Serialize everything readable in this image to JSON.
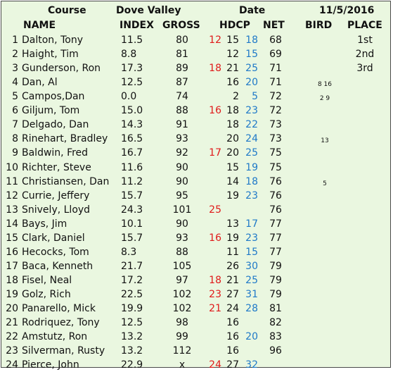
{
  "header": {
    "course_label": "Course",
    "course_value": "Dove Valley",
    "date_label": "Date",
    "date_value": "11/5/2016"
  },
  "columns": {
    "name": "NAME",
    "index": "INDEX",
    "gross": "GROSS",
    "hdcp": "HDCP",
    "net": "NET",
    "bird": "BIRD",
    "place": "PLACE"
  },
  "rows": [
    {
      "num": "1",
      "name": "Dalton, Tony",
      "index": "11.5",
      "gross": "80",
      "red": "12",
      "hdcp": "15",
      "blue": "18",
      "net": "68",
      "bird": "",
      "place": "1st"
    },
    {
      "num": "2",
      "name": "Haight, Tim",
      "index": "8.8",
      "gross": "81",
      "red": "",
      "hdcp": "12",
      "blue": "15",
      "net": "69",
      "bird": "",
      "place": "2nd"
    },
    {
      "num": "3",
      "name": "Gunderson, Ron",
      "index": "17.3",
      "gross": "89",
      "red": "18",
      "hdcp": "21",
      "blue": "25",
      "net": "71",
      "bird": "",
      "place": "3rd"
    },
    {
      "num": "4",
      "name": "Dan, Al",
      "index": "12.5",
      "gross": "87",
      "red": "",
      "hdcp": "16",
      "blue": "20",
      "net": "71",
      "bird": "8 16",
      "place": ""
    },
    {
      "num": "5",
      "name": "Campos,Dan",
      "index": "0.0",
      "gross": "74",
      "red": "",
      "hdcp": "2",
      "blue": "5",
      "net": "72",
      "bird": "2 9",
      "place": ""
    },
    {
      "num": "6",
      "name": "Giljum, Tom",
      "index": "15.0",
      "gross": "88",
      "red": "16",
      "hdcp": "18",
      "blue": "23",
      "net": "72",
      "bird": "",
      "place": ""
    },
    {
      "num": "7",
      "name": "Delgado, Dan",
      "index": "14.3",
      "gross": "91",
      "red": "",
      "hdcp": "18",
      "blue": "22",
      "net": "73",
      "bird": "",
      "place": ""
    },
    {
      "num": "8",
      "name": "Rinehart, Bradley",
      "index": "16.5",
      "gross": "93",
      "red": "",
      "hdcp": "20",
      "blue": "24",
      "net": "73",
      "bird": "13",
      "place": ""
    },
    {
      "num": "9",
      "name": "Baldwin, Fred",
      "index": "16.7",
      "gross": "92",
      "red": "17",
      "hdcp": "20",
      "blue": "25",
      "net": "75",
      "bird": "",
      "place": ""
    },
    {
      "num": "10",
      "name": "Richter, Steve",
      "index": "11.6",
      "gross": "90",
      "red": "",
      "hdcp": "15",
      "blue": "19",
      "net": "75",
      "bird": "",
      "place": ""
    },
    {
      "num": "11",
      "name": "Christiansen, Dan",
      "index": "11.2",
      "gross": "90",
      "red": "",
      "hdcp": "14",
      "blue": "18",
      "net": "76",
      "bird": "5",
      "place": ""
    },
    {
      "num": "12",
      "name": "Currie, Jeffery",
      "index": "15.7",
      "gross": "95",
      "red": "",
      "hdcp": "19",
      "blue": "23",
      "net": "76",
      "bird": "",
      "place": ""
    },
    {
      "num": "13",
      "name": "Snively, Lloyd",
      "index": "24.3",
      "gross": "101",
      "red": "25",
      "hdcp": "",
      "blue": "",
      "net": "76",
      "bird": "",
      "place": ""
    },
    {
      "num": "14",
      "name": "Bays, Jim",
      "index": "10.1",
      "gross": "90",
      "red": "",
      "hdcp": "13",
      "blue": "17",
      "net": "77",
      "bird": "",
      "place": ""
    },
    {
      "num": "15",
      "name": "Clark, Daniel",
      "index": "15.7",
      "gross": "93",
      "red": "16",
      "hdcp": "19",
      "blue": "23",
      "net": "77",
      "bird": "",
      "place": ""
    },
    {
      "num": "16",
      "name": "Hecocks, Tom",
      "index": "8.3",
      "gross": "88",
      "red": "",
      "hdcp": "11",
      "blue": "15",
      "net": "77",
      "bird": "",
      "place": ""
    },
    {
      "num": "17",
      "name": "Baca, Kenneth",
      "index": "21.7",
      "gross": "105",
      "red": "",
      "hdcp": "26",
      "blue": "30",
      "net": "79",
      "bird": "",
      "place": ""
    },
    {
      "num": "18",
      "name": "Fisel, Neal",
      "index": "17.2",
      "gross": "97",
      "red": "18",
      "hdcp": "21",
      "blue": "25",
      "net": "79",
      "bird": "",
      "place": ""
    },
    {
      "num": "19",
      "name": "Golz, Rich",
      "index": "22.5",
      "gross": "102",
      "red": "23",
      "hdcp": "27",
      "blue": "31",
      "net": "79",
      "bird": "",
      "place": ""
    },
    {
      "num": "20",
      "name": "Panarello, Mick",
      "index": "19.9",
      "gross": "102",
      "red": "21",
      "hdcp": "24",
      "blue": "28",
      "net": "81",
      "bird": "",
      "place": ""
    },
    {
      "num": "21",
      "name": "Rodriquez, Tony",
      "index": "12.5",
      "gross": "98",
      "red": "",
      "hdcp": "16",
      "blue": "",
      "net": "82",
      "bird": "",
      "place": ""
    },
    {
      "num": "22",
      "name": "Amstutz, Ron",
      "index": "13.2",
      "gross": "99",
      "red": "",
      "hdcp": "16",
      "blue": "20",
      "net": "83",
      "bird": "",
      "place": ""
    },
    {
      "num": "23",
      "name": "Silverman, Rusty",
      "index": "13.2",
      "gross": "112",
      "red": "",
      "hdcp": "16",
      "blue": "",
      "net": "96",
      "bird": "",
      "place": ""
    },
    {
      "num": "24",
      "name": "Pierce, John",
      "index": "22.9",
      "gross": "x",
      "red": "24",
      "hdcp": "27",
      "blue": "32",
      "net": "",
      "bird": "",
      "place": ""
    }
  ],
  "colors": {
    "background": "#eaf7e0",
    "red_handicap": "#e01a1a",
    "blue_handicap": "#1f79c8"
  }
}
